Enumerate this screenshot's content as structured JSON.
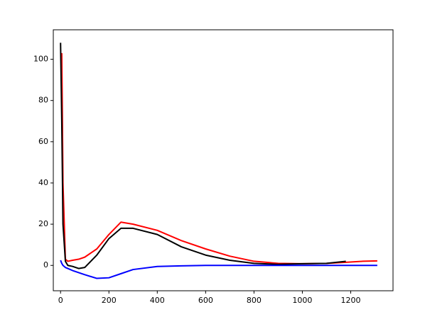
{
  "chart_data": {
    "type": "line",
    "x": [
      0,
      5,
      10,
      20,
      30,
      50,
      75,
      100,
      150,
      200,
      250,
      300,
      400,
      500,
      600,
      700,
      800,
      900,
      1000,
      1100,
      1180,
      1250,
      1310
    ],
    "series": [
      {
        "color": "#ff0000",
        "values": [
          null,
          103,
          40,
          3,
          2,
          2.5,
          3,
          4,
          8,
          15,
          21,
          20,
          17,
          12,
          8,
          4.5,
          2,
          1,
          0.8,
          1,
          1.5,
          2,
          2.2
        ]
      },
      {
        "color": "#000000",
        "values": [
          108,
          70,
          20,
          2,
          0,
          -0.5,
          -1.5,
          -1,
          5,
          13,
          18,
          18,
          15,
          9,
          5,
          2.5,
          1,
          0.5,
          0.8,
          1,
          2,
          null,
          null
        ]
      },
      {
        "color": "#0000ff",
        "values": [
          2.5,
          1,
          0,
          -1,
          -1.5,
          -2.5,
          -3.5,
          -4.5,
          -6.3,
          -6,
          -4,
          -2,
          -0.5,
          -0.2,
          0,
          0,
          0,
          0,
          0,
          0,
          0,
          0,
          0
        ]
      }
    ],
    "xlim": [
      -30,
      1375
    ],
    "ylim": [
      -12.3,
      114.3
    ],
    "xticks": [
      0,
      200,
      400,
      600,
      800,
      1000,
      1200
    ],
    "yticks": [
      0,
      20,
      40,
      60,
      80,
      100
    ]
  }
}
